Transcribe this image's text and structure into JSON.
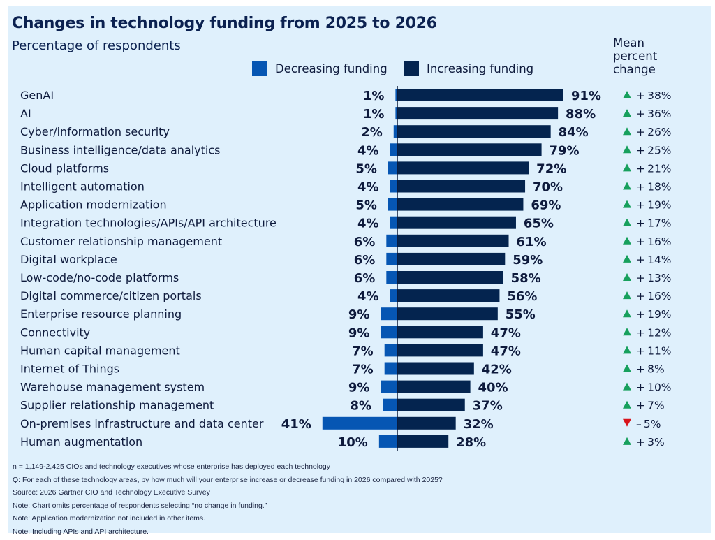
{
  "chart_data": {
    "type": "bar",
    "orientation": "horizontal-diverging",
    "title": "Changes in technology funding from 2025 to 2026",
    "subtitle": "Percentage of respondents",
    "unit": "%",
    "legend": {
      "position": "top",
      "entries": [
        {
          "name": "Decreasing funding",
          "color": "#0656b3"
        },
        {
          "name": "Increasing funding",
          "color": "#04244f"
        }
      ]
    },
    "mean_column_header": "Mean percent change",
    "categories": [
      "GenAI",
      "AI",
      "Cyber/information security",
      "Business intelligence/data analytics",
      "Cloud platforms",
      "Intelligent automation",
      "Application modernization",
      "Integration technologies/APIs/API architecture",
      "Customer relationship management",
      "Digital workplace",
      "Low-code/no-code platforms",
      "Digital commerce/citizen portals",
      "Enterprise resource planning",
      "Connectivity",
      "Human capital management",
      "Internet of Things",
      "Warehouse management system",
      "Supplier relationship management",
      "On-premises infrastructure and data center",
      "Human augmentation"
    ],
    "series": [
      {
        "name": "Decreasing funding",
        "values": [
          1,
          1,
          2,
          4,
          5,
          4,
          5,
          4,
          6,
          6,
          6,
          4,
          9,
          9,
          7,
          7,
          9,
          8,
          41,
          10
        ]
      },
      {
        "name": "Increasing funding",
        "values": [
          91,
          88,
          84,
          79,
          72,
          70,
          69,
          65,
          61,
          59,
          58,
          56,
          55,
          47,
          47,
          42,
          40,
          37,
          32,
          28
        ]
      },
      {
        "name": "Mean percent change",
        "values": [
          38,
          36,
          26,
          25,
          21,
          18,
          19,
          17,
          16,
          14,
          13,
          16,
          19,
          12,
          11,
          8,
          10,
          7,
          -5,
          3
        ]
      }
    ],
    "xlim": [
      -45,
      95
    ],
    "grid": false
  },
  "colors": {
    "background": "#dff0fc",
    "decreasing": "#0656b3",
    "increasing": "#04244f",
    "up_arrow": "#17a05d",
    "down_arrow": "#d9141b"
  },
  "footnotes": [
    "n = 1,149-2,425 CIOs and technology executives whose enterprise has deployed each technology",
    "Q: For each of these technology areas, by how much will your enterprise increase or decrease funding in 2026 compared with 2025?",
    "Source: 2026 Gartner CIO and Technology Executive Survey",
    "Note: Chart omits percentage of respondents selecting “no change in funding.”",
    "Note: Application modernization not included in other items.",
    "Note: Including APIs and API architecture."
  ]
}
